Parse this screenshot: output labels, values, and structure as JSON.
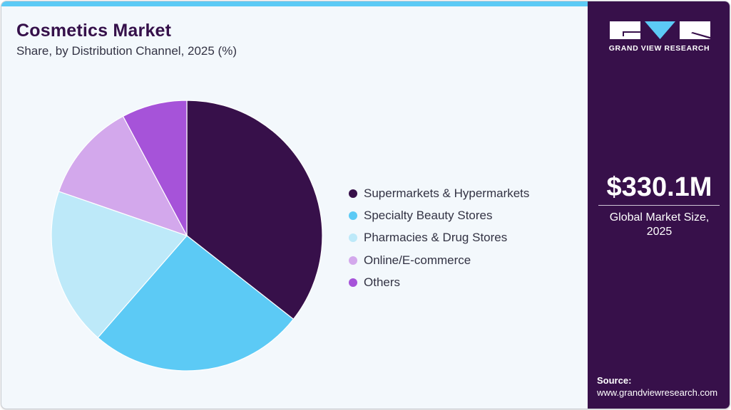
{
  "header": {
    "title": "Cosmetics Market",
    "subtitle": "Share, by Distribution Channel, 2025 (%)"
  },
  "colors": {
    "accent_bar": "#5ccaf5",
    "panel": "#37104a",
    "background": "#f3f8fc"
  },
  "legend": {
    "items": [
      {
        "label": "Supermarkets & Hypermarkets",
        "color": "#37104a"
      },
      {
        "label": "Specialty Beauty Stores",
        "color": "#5ccaf5"
      },
      {
        "label": "Pharmacies & Drug Stores",
        "color": "#bde9f9"
      },
      {
        "label": "Online/E-commerce",
        "color": "#d3a8ec"
      },
      {
        "label": "Others",
        "color": "#a653d9"
      }
    ]
  },
  "side_panel": {
    "logo_text": "GRAND VIEW RESEARCH",
    "market_value": "$330.1M",
    "market_label_line1": "Global Market Size,",
    "market_label_line2": "2025",
    "source_label": "Source:",
    "source_url": "www.grandviewresearch.com"
  },
  "chart_data": {
    "type": "pie",
    "title": "Cosmetics Market",
    "subtitle": "Share, by Distribution Channel, 2025 (%)",
    "categories": [
      "Supermarkets & Hypermarkets",
      "Specialty Beauty Stores",
      "Pharmacies & Drug Stores",
      "Online/E-commerce",
      "Others"
    ],
    "values": [
      35.6,
      25.8,
      18.9,
      11.9,
      7.8
    ],
    "colors": [
      "#37104a",
      "#5ccaf5",
      "#bde9f9",
      "#d3a8ec",
      "#a653d9"
    ],
    "start_angle": "12 o'clock, clockwise",
    "legend_position": "right",
    "data_labels": false
  }
}
